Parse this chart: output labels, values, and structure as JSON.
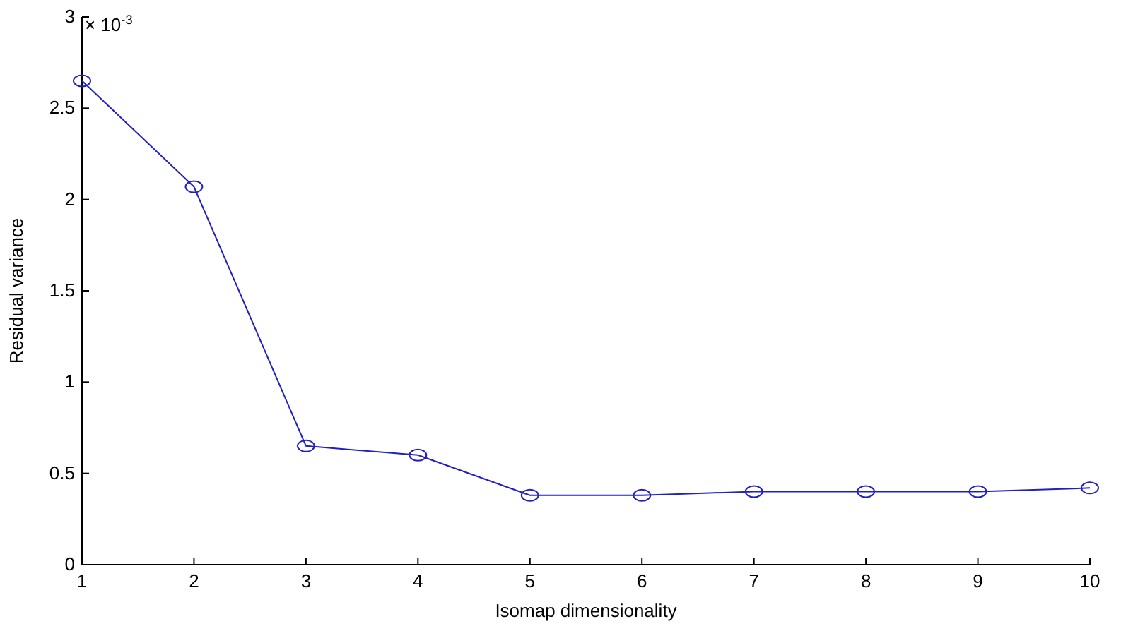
{
  "chart_data": {
    "type": "line",
    "xlabel": "Isomap dimensionality",
    "ylabel": "Residual variance",
    "x": [
      1,
      2,
      3,
      4,
      5,
      6,
      7,
      8,
      9,
      10
    ],
    "series": [
      {
        "color": "#2020c0",
        "values": [
          2.65,
          2.07,
          0.65,
          0.6,
          0.38,
          0.38,
          0.4,
          0.4,
          0.4,
          0.42
        ]
      }
    ],
    "xlim": [
      1,
      10
    ],
    "xticks": [
      1,
      2,
      3,
      4,
      5,
      6,
      7,
      8,
      9,
      10
    ],
    "ylim": [
      0,
      3
    ],
    "yticks": [
      0,
      0.5,
      1,
      1.5,
      2,
      2.5,
      3
    ],
    "annotations": [
      "× 10$^{-3}$"
    ],
    "marker": "circle",
    "line_style": "solid",
    "grid": false
  }
}
